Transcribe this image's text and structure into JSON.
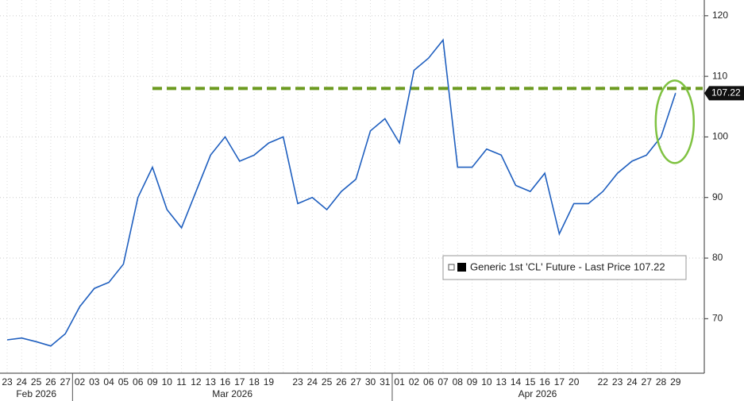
{
  "chart_data": {
    "type": "line",
    "months": [
      {
        "label": "Feb 2026",
        "days": [
          "23",
          "24",
          "25",
          "26",
          "27"
        ]
      },
      {
        "label": "Mar 2026",
        "days": [
          "02",
          "03",
          "04",
          "05",
          "06",
          "09",
          "10",
          "11",
          "12",
          "13",
          "16",
          "17",
          "18",
          "19",
          null,
          "23",
          "24",
          "25",
          "26",
          "27",
          "30",
          "31"
        ]
      },
      {
        "label": "Apr 2026",
        "days": [
          "01",
          "02",
          "06",
          "07",
          "08",
          "09",
          "10",
          "13",
          "14",
          "15",
          "16",
          "17",
          "20",
          null,
          "22",
          "23",
          "24",
          "27",
          "28",
          "29"
        ]
      }
    ],
    "series": [
      {
        "name": "Generic 1st 'CL' Future - Last Price 107.22",
        "color": "#1f5fbf",
        "values": [
          66.5,
          66.8,
          66.2,
          65.5,
          67.5,
          72,
          75,
          76,
          79,
          90,
          95,
          88,
          85,
          91,
          97,
          100,
          96,
          97,
          99,
          100,
          89,
          90,
          88,
          91,
          93,
          101,
          103,
          99,
          111,
          113,
          116,
          95,
          95,
          98,
          97,
          92,
          91,
          94,
          84,
          89,
          89,
          91,
          94,
          96,
          97,
          100,
          107.22
        ]
      }
    ],
    "last_price": 107.22,
    "reference_line": {
      "value": 108,
      "color": "#6b9a1f"
    },
    "annotation_color": "#7fc241",
    "ylim": [
      61,
      122.6
    ],
    "yticks": [
      70,
      80,
      90,
      100,
      110,
      120
    ],
    "grid": true
  }
}
